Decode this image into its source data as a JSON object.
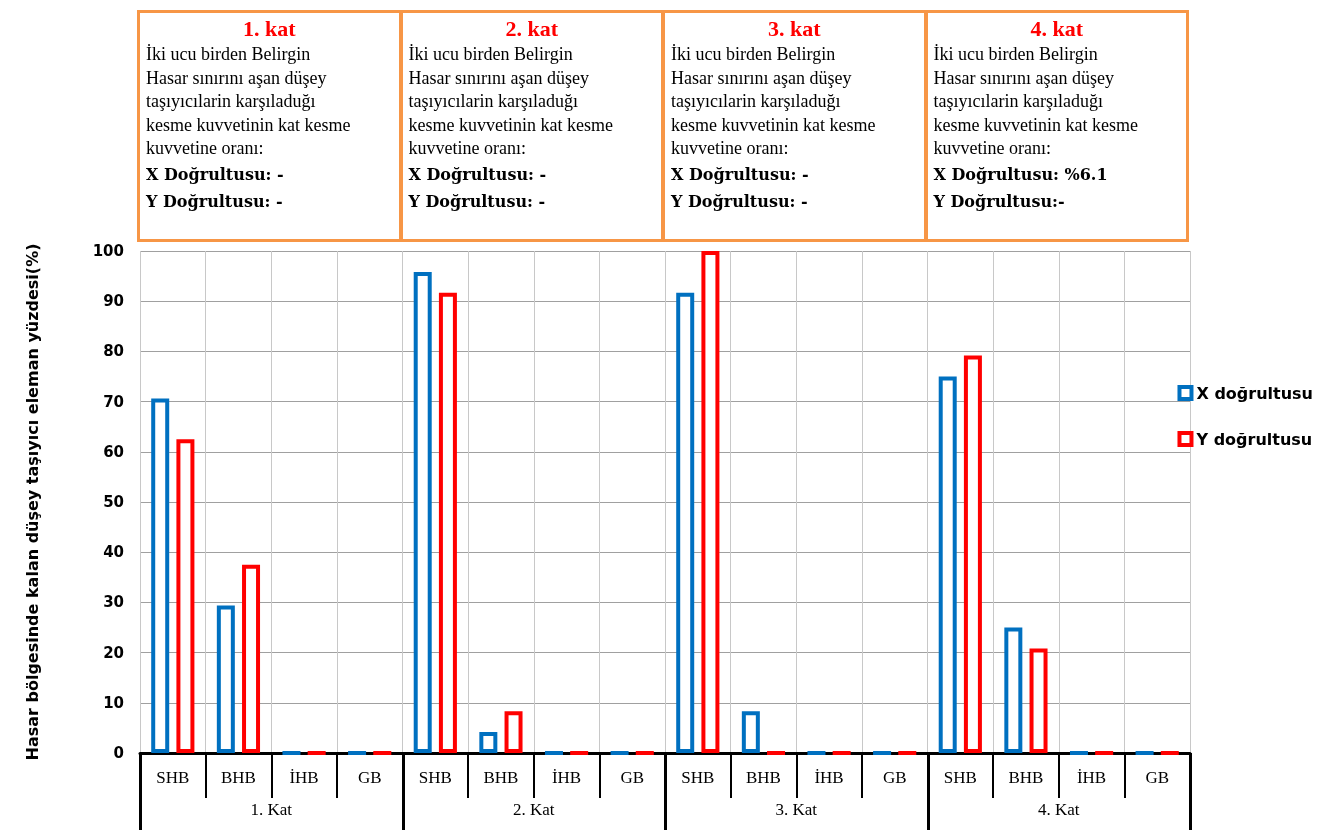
{
  "chart_data": {
    "type": "bar",
    "ylabel": "Hasar bölgesinde kalan düşey taşıyıcı eleman yüzdesi(%)",
    "categories": [
      "SHB",
      "BHB",
      "İHB",
      "GB",
      "SHB",
      "BHB",
      "İHB",
      "GB",
      "SHB",
      "BHB",
      "İHB",
      "GB",
      "SHB",
      "BHB",
      "İHB",
      "GB"
    ],
    "series": [
      {
        "name": "X doğrultusu",
        "color": "#0070c0",
        "values": [
          70.6,
          29.4,
          0,
          0,
          95.8,
          4.2,
          0,
          0,
          91.7,
          8.3,
          0,
          0,
          75,
          25,
          0,
          0
        ]
      },
      {
        "name": "Y doğrultusu",
        "color": "#ff0000",
        "values": [
          62.5,
          37.5,
          0,
          0,
          91.7,
          8.3,
          0,
          0,
          100,
          0,
          0,
          0,
          79.2,
          20.8,
          0,
          0
        ]
      }
    ],
    "ylim": [
      0,
      100
    ],
    "yticks": [
      0,
      10,
      20,
      30,
      40,
      50,
      60,
      70,
      80,
      90,
      100
    ],
    "grid": true,
    "legend": "right",
    "annotations": [
      "1. kat\nİki ucu birden Belirgin\nHasar sınırını aşan düşey\ntaşıyıcılarin karşıladuğı\nkesme kuvvetinin kat kesme\nkuvvetine oranı:\nX Doğrultusu: -\nY Doğrultusu: -",
      "2. kat\nİki ucu birden Belirgin\nHasar sınırını aşan düşey\ntaşıyıcılarin karşıladuğı\nkesme kuvvetinin kat kesme\nkuvvetine oranı:\nX Doğrultusu: -\nY Doğrultusu: -",
      "3. kat\nİki ucu birden Belirgin\nHasar sınırını aşan düşey\ntaşıyıcılarin karşıladuğı\nkesme kuvvetinin kat kesme\nkuvvetine oranı:\nX Doğrultusu: -\nY Doğrultusu: -",
      "4. kat\nİki ucu birden Belirgin\nHasar sınırını aşan düşey\ntaşıyıcılarin karşıladuğı\nkesme kuvvetinin kat kesme\nkuvvetine oranı:\nX Doğrultusu: %6.1\nY Doğrultusu:-",
      "1. Kat",
      "2. Kat",
      "3. Kat",
      "4. Kat"
    ]
  }
}
